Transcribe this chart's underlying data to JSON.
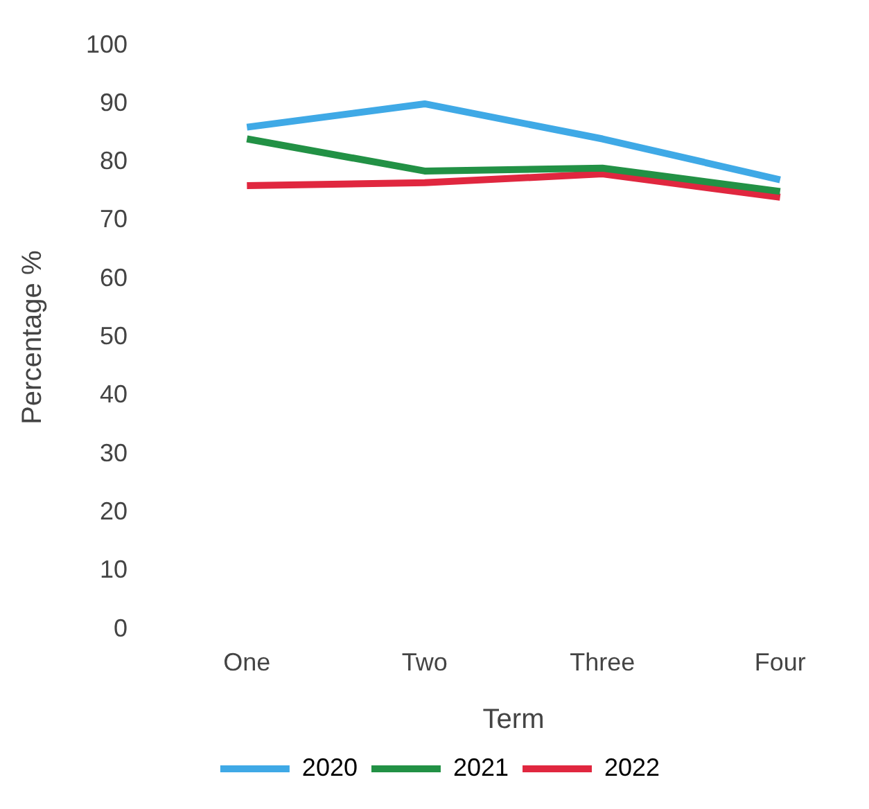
{
  "chart_data": {
    "type": "line",
    "xlabel": "Term",
    "ylabel": "Percentage %",
    "categories": [
      "One",
      "Two",
      "Three",
      "Four"
    ],
    "series": [
      {
        "name": "2020",
        "color": "#3fa9e6",
        "values": [
          86,
          90,
          84,
          77
        ]
      },
      {
        "name": "2021",
        "color": "#229145",
        "values": [
          84,
          78.5,
          79,
          75
        ]
      },
      {
        "name": "2022",
        "color": "#e0273f",
        "values": [
          76,
          76.5,
          78,
          74
        ]
      }
    ],
    "ylim": [
      0,
      100
    ],
    "yticks": [
      0,
      10,
      20,
      30,
      40,
      50,
      60,
      70,
      80,
      90,
      100
    ],
    "grid": false,
    "legend": "bottom",
    "marker": "none",
    "line_style": "solid"
  }
}
